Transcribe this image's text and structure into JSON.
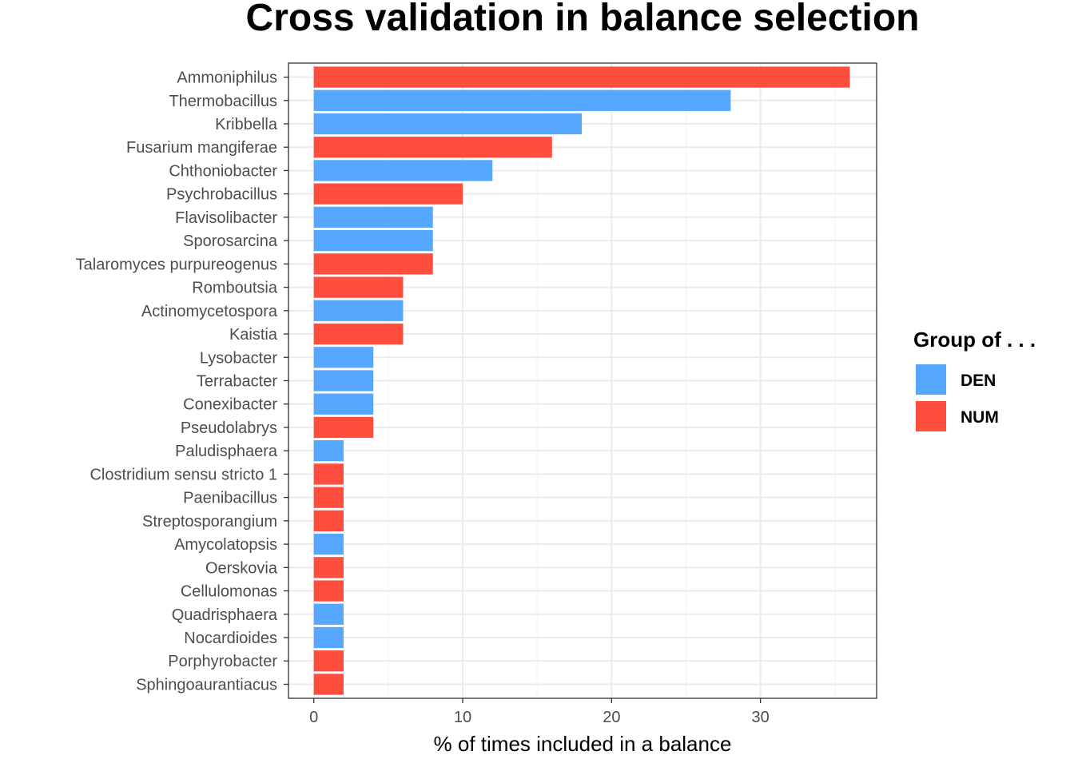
{
  "chart_data": {
    "type": "bar",
    "orientation": "horizontal",
    "title": "Cross validation in balance selection",
    "xlabel": "% of times included in a balance",
    "ylabel": "",
    "xlim": [
      -1.7,
      37.8
    ],
    "x_ticks": [
      0,
      10,
      20,
      30
    ],
    "grid": true,
    "legend": {
      "title": "Group of . . .",
      "placement": "right",
      "entries": [
        {
          "key": "DEN",
          "label": "DEN",
          "color": "#55a7ff"
        },
        {
          "key": "NUM",
          "label": "NUM",
          "color": "#ff4e3e"
        }
      ]
    },
    "categories": [
      "Ammoniphilus",
      "Thermobacillus",
      "Kribbella",
      "Fusarium mangiferae",
      "Chthoniobacter",
      "Psychrobacillus",
      "Flavisolibacter",
      "Sporosarcina",
      "Talaromyces purpureogenus",
      "Romboutsia",
      "Actinomycetospora",
      "Kaistia",
      "Lysobacter",
      "Terrabacter",
      "Conexibacter",
      "Pseudolabrys",
      "Paludisphaera",
      "Clostridium sensu stricto 1",
      "Paenibacillus",
      "Streptosporangium",
      "Amycolatopsis",
      "Oerskovia",
      "Cellulomonas",
      "Quadrisphaera",
      "Nocardioides",
      "Porphyrobacter",
      "Sphingoaurantiacus"
    ],
    "values": [
      36,
      28,
      18,
      16,
      12,
      10,
      8,
      8,
      8,
      6,
      6,
      6,
      4,
      4,
      4,
      4,
      2,
      2,
      2,
      2,
      2,
      2,
      2,
      2,
      2,
      2,
      2
    ],
    "groups": [
      "NUM",
      "DEN",
      "DEN",
      "NUM",
      "DEN",
      "NUM",
      "DEN",
      "DEN",
      "NUM",
      "NUM",
      "DEN",
      "NUM",
      "DEN",
      "DEN",
      "DEN",
      "NUM",
      "DEN",
      "NUM",
      "NUM",
      "NUM",
      "DEN",
      "NUM",
      "NUM",
      "DEN",
      "DEN",
      "NUM",
      "NUM"
    ],
    "colors": {
      "panel_border": "#333333",
      "grid_major": "#ebebeb",
      "grid_minor": "#f5f5f5",
      "tick": "#333333"
    }
  }
}
